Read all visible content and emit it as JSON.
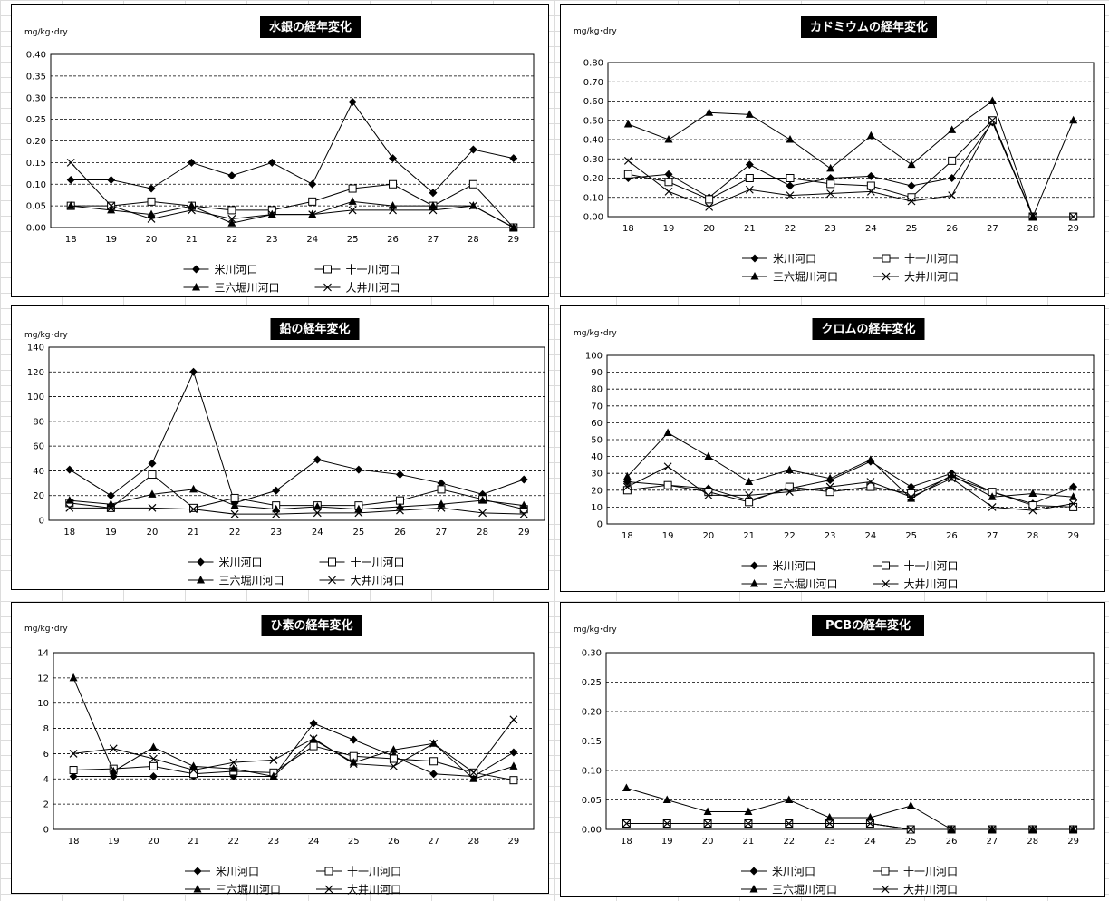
{
  "legend_order": [
    "米川河口",
    "十一川河口",
    "三六堀川河口",
    "大井川河口"
  ],
  "chart_data": [
    {
      "type": "line",
      "title": "水銀の経年変化",
      "ylabel": "mg/kg･dry",
      "categories": [
        "18",
        "19",
        "20",
        "21",
        "22",
        "23",
        "24",
        "25",
        "26",
        "27",
        "28",
        "29"
      ],
      "ylim": [
        0,
        0.4
      ],
      "yticks": [
        "0.00",
        "0.05",
        "0.10",
        "0.15",
        "0.20",
        "0.25",
        "0.30",
        "0.35",
        "0.40"
      ],
      "grid": "dashed",
      "series": [
        {
          "name": "米川河口",
          "marker": "diamond",
          "values": [
            0.11,
            0.11,
            0.09,
            0.15,
            0.12,
            0.15,
            0.1,
            0.29,
            0.16,
            0.08,
            0.18,
            0.16
          ]
        },
        {
          "name": "十一川河口",
          "marker": "square",
          "values": [
            0.05,
            0.05,
            0.06,
            0.05,
            0.04,
            0.04,
            0.06,
            0.09,
            0.1,
            0.05,
            0.1,
            0.0
          ]
        },
        {
          "name": "三六堀川河口",
          "marker": "triangle",
          "values": [
            0.05,
            0.04,
            0.03,
            0.05,
            0.01,
            0.03,
            0.03,
            0.06,
            0.05,
            0.05,
            0.05,
            0.0
          ]
        },
        {
          "name": "大井川河口",
          "marker": "x",
          "values": [
            0.15,
            0.05,
            0.02,
            0.04,
            0.02,
            0.03,
            0.03,
            0.04,
            0.04,
            0.04,
            0.05,
            0.0
          ]
        }
      ]
    },
    {
      "type": "line",
      "title": "カドミウムの経年変化",
      "ylabel": "mg/kg･dry",
      "categories": [
        "18",
        "19",
        "20",
        "21",
        "22",
        "23",
        "24",
        "25",
        "26",
        "27",
        "28",
        "29"
      ],
      "ylim": [
        0,
        0.8
      ],
      "yticks": [
        "0.00",
        "0.10",
        "0.20",
        "0.30",
        "0.40",
        "0.50",
        "0.60",
        "0.70",
        "0.80"
      ],
      "grid": "dashed",
      "series": [
        {
          "name": "米川河口",
          "marker": "diamond",
          "values": [
            0.2,
            0.22,
            0.1,
            0.27,
            0.16,
            0.2,
            0.21,
            0.16,
            0.2,
            0.49,
            0.0,
            0.0
          ]
        },
        {
          "name": "十一川河口",
          "marker": "square",
          "values": [
            0.22,
            0.18,
            0.09,
            0.2,
            0.2,
            0.17,
            0.16,
            0.1,
            0.29,
            0.5,
            0.0,
            0.0
          ]
        },
        {
          "name": "三六堀川河口",
          "marker": "triangle",
          "values": [
            0.48,
            0.4,
            0.54,
            0.53,
            0.4,
            0.25,
            0.42,
            0.27,
            0.45,
            0.6,
            0.0,
            0.5
          ]
        },
        {
          "name": "大井川河口",
          "marker": "x",
          "values": [
            0.29,
            0.13,
            0.05,
            0.14,
            0.11,
            0.12,
            0.13,
            0.08,
            0.11,
            0.5,
            0.0,
            0.0
          ]
        }
      ]
    },
    {
      "type": "line",
      "title": "鉛の経年変化",
      "ylabel": "mg/kg･dry",
      "categories": [
        "18",
        "19",
        "20",
        "21",
        "22",
        "23",
        "24",
        "25",
        "26",
        "27",
        "28",
        "29"
      ],
      "ylim": [
        0,
        140
      ],
      "yticks": [
        "0",
        "20",
        "40",
        "60",
        "80",
        "100",
        "120",
        "140"
      ],
      "grid": "dashed",
      "series": [
        {
          "name": "米川河口",
          "marker": "diamond",
          "values": [
            41,
            20,
            46,
            120,
            14,
            24,
            49,
            41,
            37,
            30,
            21,
            33
          ]
        },
        {
          "name": "十一川河口",
          "marker": "square",
          "values": [
            14,
            10,
            37,
            10,
            18,
            12,
            12,
            12,
            16,
            25,
            17,
            9
          ]
        },
        {
          "name": "三六堀川河口",
          "marker": "triangle",
          "values": [
            16,
            13,
            21,
            25,
            12,
            9,
            11,
            9,
            11,
            13,
            16,
            12
          ]
        },
        {
          "name": "大井川河口",
          "marker": "x",
          "values": [
            10,
            10,
            10,
            9,
            5,
            5,
            6,
            6,
            8,
            10,
            6,
            5
          ]
        }
      ]
    },
    {
      "type": "line",
      "title": "クロムの経年変化",
      "ylabel": "mg/kg･dry",
      "categories": [
        "18",
        "19",
        "20",
        "21",
        "22",
        "23",
        "24",
        "25",
        "26",
        "27",
        "28",
        "29"
      ],
      "ylim": [
        0,
        100
      ],
      "yticks": [
        "0",
        "10",
        "20",
        "30",
        "40",
        "50",
        "60",
        "70",
        "80",
        "90",
        "100"
      ],
      "grid": "dashed",
      "series": [
        {
          "name": "米川河口",
          "marker": "diamond",
          "values": [
            25,
            23,
            21,
            14,
            21,
            26,
            37,
            22,
            30,
            19,
            12,
            22
          ]
        },
        {
          "name": "十一川河口",
          "marker": "square",
          "values": [
            20,
            23,
            19,
            13,
            22,
            19,
            22,
            18,
            28,
            19,
            11,
            10
          ]
        },
        {
          "name": "三六堀川河口",
          "marker": "triangle",
          "values": [
            28,
            54,
            40,
            25,
            32,
            27,
            38,
            15,
            29,
            16,
            18,
            16
          ]
        },
        {
          "name": "大井川河口",
          "marker": "x",
          "values": [
            22,
            34,
            17,
            17,
            19,
            22,
            25,
            16,
            27,
            10,
            8,
            12
          ]
        }
      ]
    },
    {
      "type": "line",
      "title": "ひ素の経年変化",
      "ylabel": "mg/kg･dry",
      "categories": [
        "18",
        "19",
        "20",
        "21",
        "22",
        "23",
        "24",
        "25",
        "26",
        "27",
        "28",
        "29"
      ],
      "ylim": [
        0,
        14
      ],
      "yticks": [
        "0",
        "2",
        "4",
        "6",
        "8",
        "10",
        "12",
        "14"
      ],
      "grid": "dashed",
      "series": [
        {
          "name": "米川河口",
          "marker": "diamond",
          "values": [
            4.2,
            4.2,
            4.2,
            4.2,
            4.2,
            4.2,
            8.4,
            7.1,
            5.8,
            4.4,
            4.2,
            6.1
          ]
        },
        {
          "name": "十一川河口",
          "marker": "square",
          "values": [
            4.7,
            4.8,
            5.0,
            4.4,
            4.6,
            4.5,
            6.6,
            5.8,
            5.6,
            5.4,
            4.5,
            3.9
          ]
        },
        {
          "name": "三六堀川河口",
          "marker": "triangle",
          "values": [
            12.0,
            4.6,
            6.5,
            5.0,
            4.8,
            4.2,
            7.1,
            5.3,
            6.3,
            6.8,
            4.0,
            5.0
          ]
        },
        {
          "name": "大井川河口",
          "marker": "x",
          "values": [
            6.0,
            6.4,
            5.6,
            4.7,
            5.3,
            5.5,
            7.2,
            5.2,
            5.0,
            6.8,
            4.5,
            8.7
          ]
        }
      ]
    },
    {
      "type": "line",
      "title": "PCBの経年変化",
      "ylabel": "mg/kg･dry",
      "categories": [
        "18",
        "19",
        "20",
        "21",
        "22",
        "23",
        "24",
        "25",
        "26",
        "27",
        "28",
        "29"
      ],
      "ylim": [
        0,
        0.3
      ],
      "yticks": [
        "0.00",
        "0.05",
        "0.10",
        "0.15",
        "0.20",
        "0.25",
        "0.30"
      ],
      "grid": "dashed",
      "series": [
        {
          "name": "米川河口",
          "marker": "diamond",
          "values": [
            0.01,
            0.01,
            0.01,
            0.01,
            0.01,
            0.01,
            0.01,
            0.0,
            0.0,
            0.0,
            0.0,
            0.0
          ]
        },
        {
          "name": "十一川河口",
          "marker": "square",
          "values": [
            0.01,
            0.01,
            0.01,
            0.01,
            0.01,
            0.01,
            0.01,
            0.0,
            0.0,
            0.0,
            0.0,
            0.0
          ]
        },
        {
          "name": "三六堀川河口",
          "marker": "triangle",
          "values": [
            0.07,
            0.05,
            0.03,
            0.03,
            0.05,
            0.02,
            0.02,
            0.04,
            0.0,
            0.0,
            0.0,
            0.0
          ]
        },
        {
          "name": "大井川河口",
          "marker": "x",
          "values": [
            0.01,
            0.01,
            0.01,
            0.01,
            0.01,
            0.01,
            0.01,
            0.0,
            0.0,
            0.0,
            0.0,
            0.0
          ]
        }
      ]
    }
  ]
}
